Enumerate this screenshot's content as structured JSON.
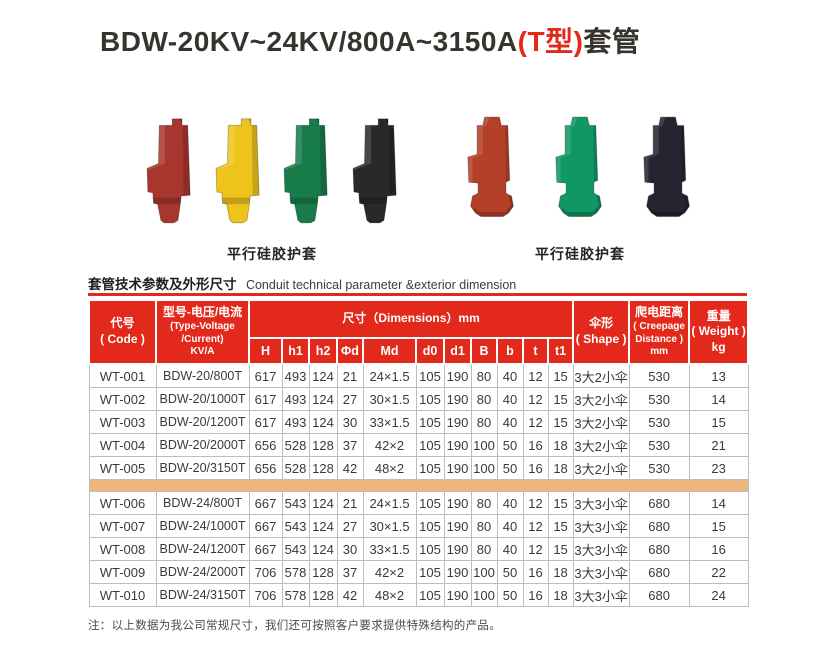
{
  "title": {
    "part1": "BDW-20KV~24KV/800A~3150A",
    "highlight": "(T型)",
    "part2": "套管"
  },
  "section_header": {
    "zh": "套管技术参数及外形尺寸",
    "en": "Conduit technical parameter &exterior dimension"
  },
  "footnote": "注：以上数据为我公司常规尺寸，我们还可按照客户要求提供特殊结构的产品。",
  "colors": {
    "accent_red": "#e2291c",
    "separator_tan": "#efb57e",
    "border_gray": "#bdbdbd"
  },
  "products": {
    "groups": [
      {
        "caption": "平行硅胶护套",
        "variant": "elbow",
        "items": [
          {
            "color_name": "red",
            "color": "#a8352e"
          },
          {
            "color_name": "yellow",
            "color": "#eec31b"
          },
          {
            "color_name": "green",
            "color": "#187c4a"
          },
          {
            "color_name": "black",
            "color": "#2a2829"
          }
        ]
      },
      {
        "caption": "平行硅胶护套",
        "variant": "stub",
        "items": [
          {
            "color_name": "red",
            "color": "#b54029"
          },
          {
            "color_name": "green",
            "color": "#109764"
          },
          {
            "color_name": "black",
            "color": "#262430"
          }
        ]
      }
    ]
  },
  "table": {
    "header": {
      "code": "代号\n( Code )",
      "type_zh": "型号-电压/电流",
      "type_en": "(Type-Voltage\n/Current)\nKV/A",
      "dimensions": "尺寸（Dimensions）mm",
      "dim_cols": [
        "H",
        "h1",
        "h2",
        "Φd",
        "Md",
        "d0",
        "d1",
        "B",
        "b",
        "t",
        "t1"
      ],
      "shape": "伞形\n( Shape )",
      "creepage_zh": "爬电距离",
      "creepage_en": "( Creepage\nDistance )\nmm",
      "weight": "重量\n( Weight )\nkg"
    },
    "col_keys": [
      "code",
      "type",
      "H",
      "h1",
      "h2",
      "phi-d",
      "Md",
      "d0",
      "d1",
      "B",
      "b",
      "t",
      "t1",
      "shape",
      "creepage",
      "weight"
    ],
    "separator_after": 5,
    "rows": [
      {
        "cells": [
          "WT-001",
          "BDW-20/800T",
          "617",
          "493",
          "124",
          "21",
          "24×1.5",
          "105",
          "190",
          "80",
          "40",
          "12",
          "15",
          "3大2小伞",
          "530",
          "13"
        ]
      },
      {
        "cells": [
          "WT-002",
          "BDW-20/1000T",
          "617",
          "493",
          "124",
          "27",
          "30×1.5",
          "105",
          "190",
          "80",
          "40",
          "12",
          "15",
          "3大2小伞",
          "530",
          "14"
        ]
      },
      {
        "cells": [
          "WT-003",
          "BDW-20/1200T",
          "617",
          "493",
          "124",
          "30",
          "33×1.5",
          "105",
          "190",
          "80",
          "40",
          "12",
          "15",
          "3大2小伞",
          "530",
          "15"
        ]
      },
      {
        "cells": [
          "WT-004",
          "BDW-20/2000T",
          "656",
          "528",
          "128",
          "37",
          "42×2",
          "105",
          "190",
          "100",
          "50",
          "16",
          "18",
          "3大2小伞",
          "530",
          "21"
        ]
      },
      {
        "cells": [
          "WT-005",
          "BDW-20/3150T",
          "656",
          "528",
          "128",
          "42",
          "48×2",
          "105",
          "190",
          "100",
          "50",
          "16",
          "18",
          "3大2小伞",
          "530",
          "23"
        ]
      },
      {
        "cells": [
          "WT-006",
          "BDW-24/800T",
          "667",
          "543",
          "124",
          "21",
          "24×1.5",
          "105",
          "190",
          "80",
          "40",
          "12",
          "15",
          "3大3小伞",
          "680",
          "14"
        ]
      },
      {
        "cells": [
          "WT-007",
          "BDW-24/1000T",
          "667",
          "543",
          "124",
          "27",
          "30×1.5",
          "105",
          "190",
          "80",
          "40",
          "12",
          "15",
          "3大3小伞",
          "680",
          "15"
        ]
      },
      {
        "cells": [
          "WT-008",
          "BDW-24/1200T",
          "667",
          "543",
          "124",
          "30",
          "33×1.5",
          "105",
          "190",
          "80",
          "40",
          "12",
          "15",
          "3大3小伞",
          "680",
          "16"
        ]
      },
      {
        "cells": [
          "WT-009",
          "BDW-24/2000T",
          "706",
          "578",
          "128",
          "37",
          "42×2",
          "105",
          "190",
          "100",
          "50",
          "16",
          "18",
          "3大3小伞",
          "680",
          "22"
        ]
      },
      {
        "cells": [
          "WT-010",
          "BDW-24/3150T",
          "706",
          "578",
          "128",
          "42",
          "48×2",
          "105",
          "190",
          "100",
          "50",
          "16",
          "18",
          "3大3小伞",
          "680",
          "24"
        ]
      }
    ]
  }
}
